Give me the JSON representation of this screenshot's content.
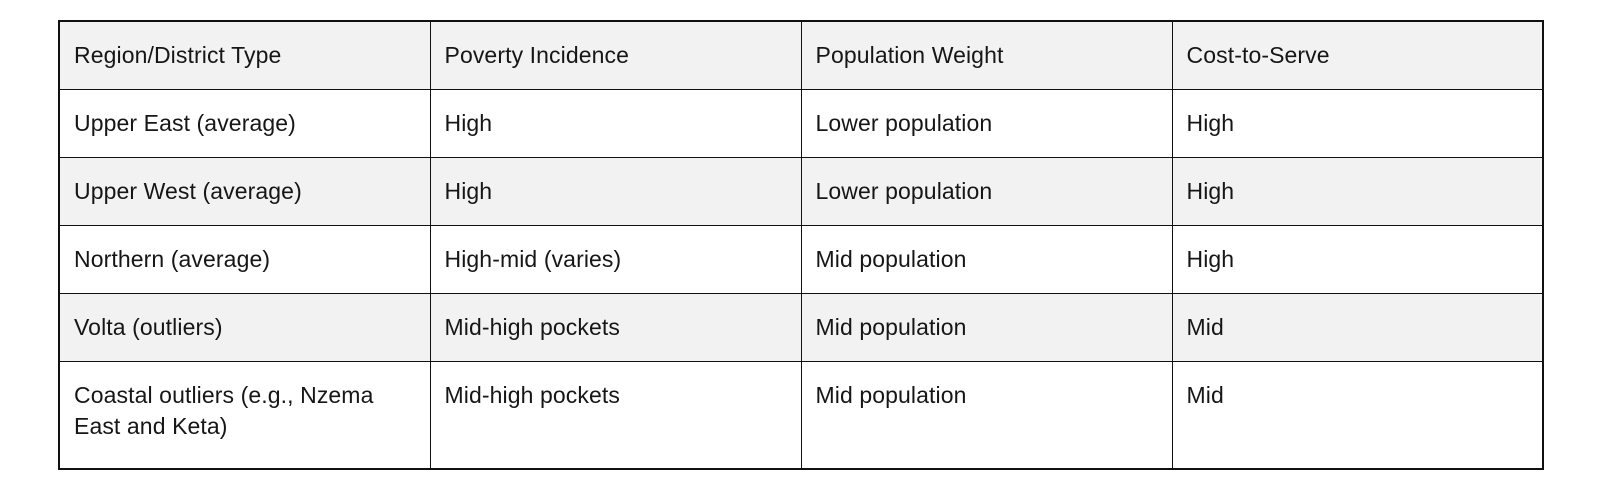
{
  "table": {
    "headers": [
      "Region/District Type",
      "Poverty Incidence",
      "Population Weight",
      "Cost-to-Serve"
    ],
    "rows": [
      [
        "Upper East (average)",
        "High",
        "Lower population",
        "High"
      ],
      [
        "Upper West (average)",
        "High",
        "Lower population",
        "High"
      ],
      [
        "Northern (average)",
        "High-mid (varies)",
        "Mid population",
        "High"
      ],
      [
        "Volta (outliers)",
        "Mid-high pockets",
        "Mid population",
        "Mid"
      ],
      [
        "Coastal outliers (e.g., Nzema East and Keta)",
        "Mid-high pockets",
        "Mid population",
        "Mid"
      ]
    ],
    "colors": {
      "header_bg": "#f2f2f2",
      "zebra_bg": "#f2f2f2",
      "row_bg": "#ffffff",
      "border": "#111111",
      "text": "#161616"
    }
  }
}
